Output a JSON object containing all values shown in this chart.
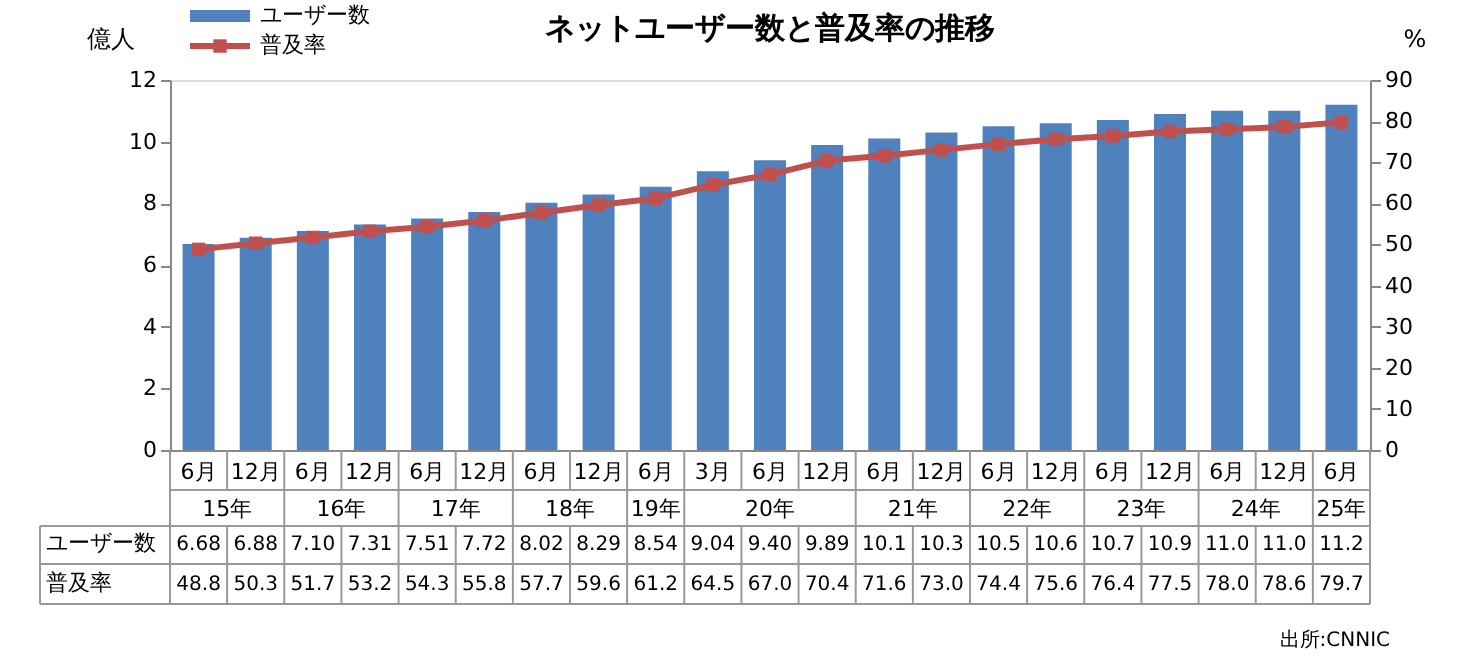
{
  "chart_data": {
    "type": "bar",
    "title": "ネットユーザー数と普及率の推移",
    "categories": [
      "6月",
      "12月",
      "6月",
      "12月",
      "6月",
      "12月",
      "6月",
      "12月",
      "6月",
      "3月",
      "6月",
      "12月",
      "6月",
      "12月",
      "6月",
      "12月",
      "6月",
      "12月",
      "6月",
      "12月",
      "6月"
    ],
    "series": [
      {
        "name": "ユーザー数",
        "color": "#4f81bd",
        "values": [
          6.68,
          6.88,
          7.1,
          7.31,
          7.51,
          7.72,
          8.02,
          8.29,
          8.54,
          9.04,
          9.4,
          9.89,
          10.1,
          10.3,
          10.5,
          10.6,
          10.7,
          10.9,
          11.0,
          11.0,
          11.2
        ],
        "value_labels": [
          "6.68",
          "6.88",
          "7.10",
          "7.31",
          "7.51",
          "7.72",
          "8.02",
          "8.29",
          "8.54",
          "9.04",
          "9.40",
          "9.89",
          "10.1",
          "10.3",
          "10.5",
          "10.6",
          "10.7",
          "10.9",
          "11.0",
          "11.0",
          "11.2"
        ]
      },
      {
        "name": "普及率",
        "type": "line",
        "axis": "y2",
        "color": "#c0504d",
        "marker": "square",
        "values": [
          48.8,
          50.3,
          51.7,
          53.2,
          54.3,
          55.8,
          57.7,
          59.6,
          61.2,
          64.5,
          67.0,
          70.4,
          71.6,
          73.0,
          74.4,
          75.6,
          76.4,
          77.5,
          78.0,
          78.6,
          79.7
        ],
        "value_labels": [
          "48.8",
          "50.3",
          "51.7",
          "53.2",
          "54.3",
          "55.8",
          "57.7",
          "59.6",
          "61.2",
          "64.5",
          "67.0",
          "70.4",
          "71.6",
          "73.0",
          "74.4",
          "75.6",
          "76.4",
          "77.5",
          "78.0",
          "78.6",
          "79.7"
        ]
      }
    ],
    "ylabel": "億人",
    "y2label": "%",
    "ylim": [
      0,
      12
    ],
    "yticks": [
      0,
      2,
      4,
      6,
      8,
      10,
      12
    ],
    "y2lim": [
      0,
      90
    ],
    "y2ticks": [
      0,
      10,
      20,
      30,
      40,
      50,
      60,
      70,
      80,
      90
    ],
    "legend": "top left",
    "grid": false,
    "annotations": [
      "15年",
      "16年",
      "17年",
      "18年",
      "19年",
      "20年",
      "21年",
      "22年",
      "23年",
      "24年",
      "25年",
      "出所:CNNIC"
    ]
  }
}
